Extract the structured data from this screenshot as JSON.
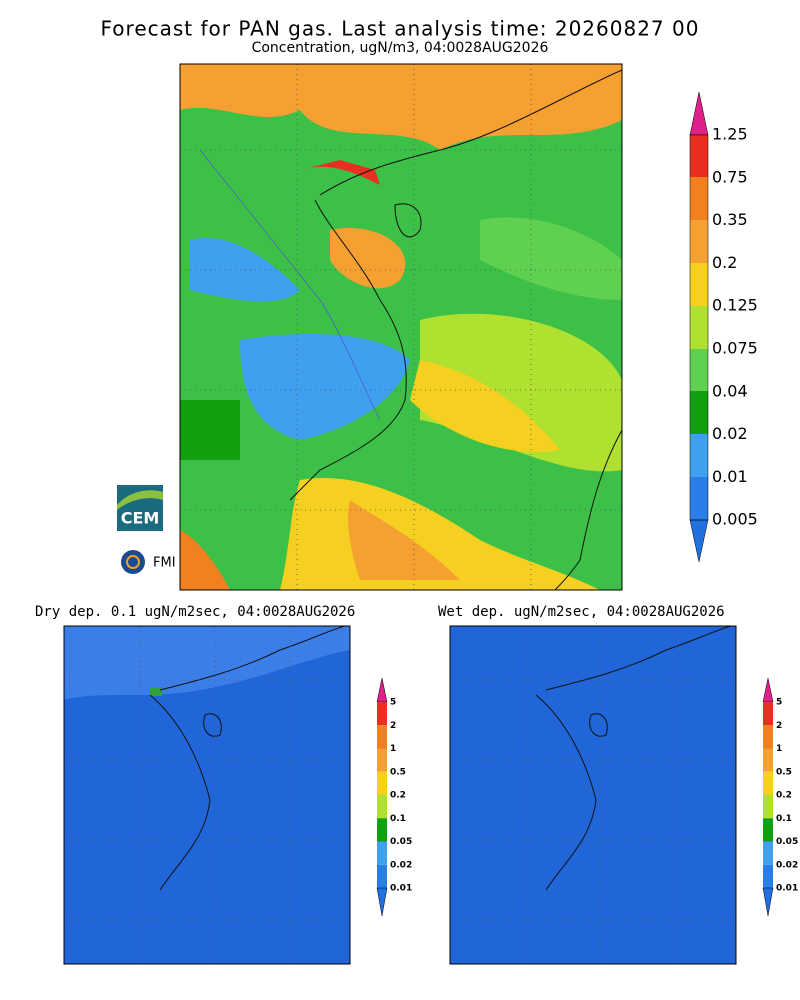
{
  "header": {
    "title": "Forecast for PAN gas. Last analysis time: 20260827 00",
    "subtitle": "Concentration, ugN/m3, 04:0028AUG2026"
  },
  "main_colorbar": {
    "labels": [
      "1.25",
      "0.75",
      "0.35",
      "0.2",
      "0.125",
      "0.075",
      "0.04",
      "0.02",
      "0.01",
      "0.005"
    ]
  },
  "dry_panel": {
    "title": "Dry dep. 0.1 ugN/m2sec, 04:0028AUG2026",
    "colorbar_labels": [
      "5",
      "2",
      "1",
      "0.5",
      "0.2",
      "0.1",
      "0.05",
      "0.02",
      "0.01"
    ]
  },
  "wet_panel": {
    "title": "Wet dep. ugN/m2sec, 04:0028AUG2026",
    "colorbar_labels": [
      "5",
      "2",
      "1",
      "0.5",
      "0.2",
      "0.1",
      "0.05",
      "0.02",
      "0.01"
    ]
  },
  "logos": {
    "cem": "CEM",
    "fmi": "FMI"
  }
}
